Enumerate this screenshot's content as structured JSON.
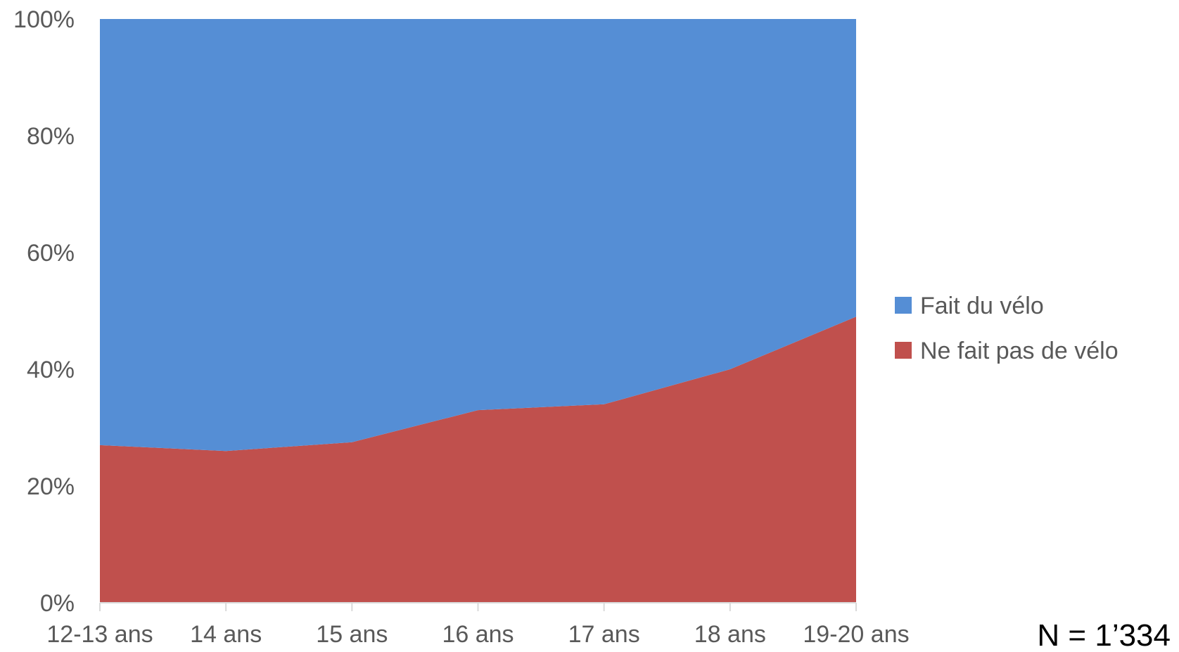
{
  "chart_data": {
    "type": "area",
    "stacked_percent": true,
    "categories": [
      "12-13 ans",
      "14 ans",
      "15 ans",
      "16 ans",
      "17 ans",
      "18 ans",
      "19-20 ans"
    ],
    "series": [
      {
        "name": "Ne fait pas de vélo",
        "values": [
          27,
          26,
          27.5,
          33,
          34,
          40,
          49
        ],
        "color": "#c0504d"
      },
      {
        "name": "Fait du vélo",
        "values": [
          73,
          74,
          72.5,
          67,
          66,
          60,
          51
        ],
        "color": "#558ed5"
      }
    ],
    "ylim": [
      0,
      100
    ],
    "yticks": [
      "0%",
      "20%",
      "40%",
      "60%",
      "80%",
      "100%"
    ],
    "legend_position": "right",
    "grid": false,
    "note": "N = 1’334"
  }
}
